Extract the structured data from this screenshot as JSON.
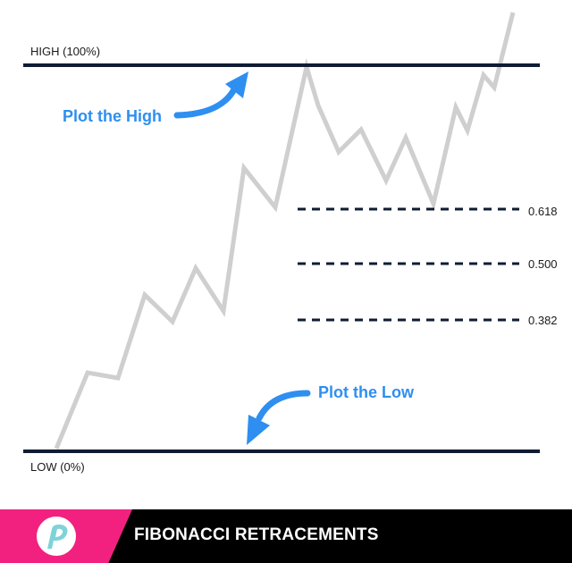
{
  "levels": {
    "high_label": "HIGH (100%)",
    "low_label": "LOW (0%)",
    "retracements": [
      {
        "label": "0.618",
        "value": 0.618
      },
      {
        "label": "0.500",
        "value": 0.5
      },
      {
        "label": "0.382",
        "value": 0.382
      }
    ]
  },
  "annotations": {
    "plot_high": "Plot the High",
    "plot_low": "Plot the Low"
  },
  "footer": {
    "title": "FIBONACCI RETRACEMENTS",
    "logo_icon": "p-logo-icon"
  },
  "colors": {
    "level_line": "#0f1c33",
    "price_line": "#cfcfcf",
    "annotation_blue": "#2e8ff0",
    "footer_pink": "#f2217f",
    "footer_bg": "#000000",
    "logo_teal": "#7fd3d8"
  }
}
